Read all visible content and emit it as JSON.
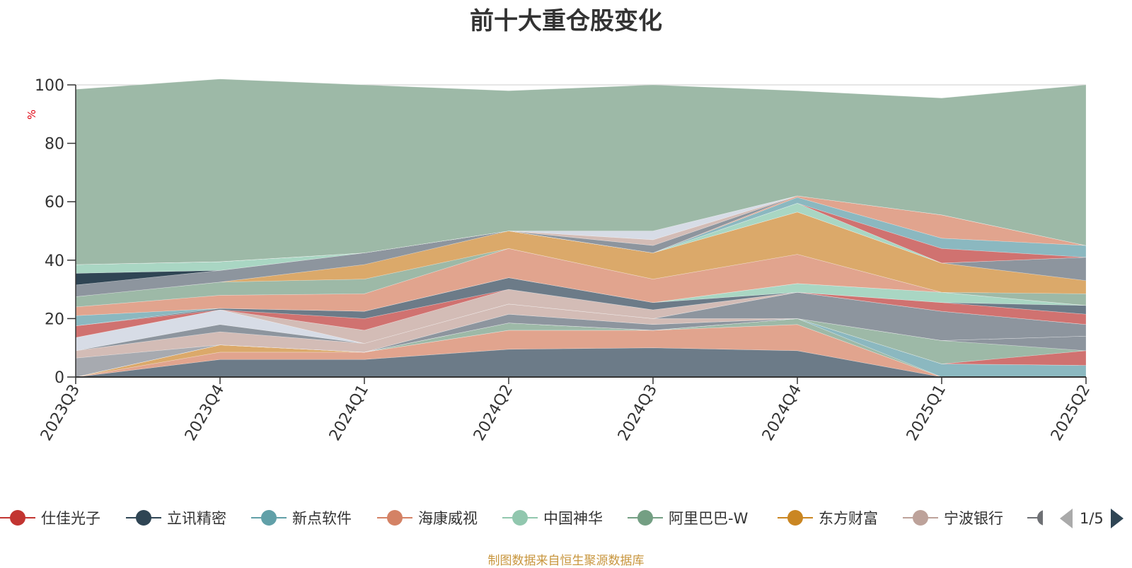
{
  "chart_data": {
    "type": "area",
    "stacked": true,
    "title": "前十大重仓股变化",
    "ylabel": "%",
    "ylim": [
      0,
      100
    ],
    "yticks": [
      0,
      20,
      40,
      60,
      80,
      100
    ],
    "grid": true,
    "legend_position": "bottom",
    "x": [
      "2023Q3",
      "2023Q4",
      "2024Q1",
      "2024Q2",
      "2024Q3",
      "2024Q4",
      "2025Q1",
      "2025Q2"
    ],
    "series": [
      {
        "name": "立讯精密",
        "color": "#6c7b88",
        "values": [
          0,
          6,
          6,
          9.5,
          10,
          9,
          0,
          0
        ]
      },
      {
        "name": "海康威视",
        "color": "#e1a48e",
        "values": [
          0,
          2.5,
          2.5,
          6.5,
          6,
          9,
          0,
          0
        ]
      },
      {
        "name": "东方财富",
        "color": "#dba96a",
        "values": [
          0,
          2.5,
          0,
          0,
          0,
          0,
          0,
          0
        ]
      },
      {
        "name": "",
        "color": "#9db9a7",
        "values": [
          0,
          0,
          0,
          2.5,
          0,
          2,
          0,
          0
        ]
      },
      {
        "name": "新点软件",
        "color": "#8bb8c0",
        "values": [
          0,
          0,
          0,
          0,
          0,
          0,
          4.5,
          4
        ]
      },
      {
        "name": "中国神华",
        "color": "#a9d6c3",
        "values": [
          0,
          0,
          0,
          0,
          0,
          0,
          0,
          0
        ]
      },
      {
        "name": "仕佳光子",
        "color": "#d07270",
        "values": [
          0,
          0,
          0,
          0,
          0,
          0,
          0,
          5
        ]
      },
      {
        "name": "",
        "color": "#9db9a7",
        "values": [
          0,
          0,
          0,
          0,
          0,
          0,
          8,
          0
        ]
      },
      {
        "name": "",
        "color": "#8d959e",
        "values": [
          0,
          0,
          0,
          3,
          2,
          0,
          0,
          5
        ]
      },
      {
        "name": "",
        "color": "#a7aab0",
        "values": [
          6.5,
          0,
          0,
          0,
          0,
          0,
          0,
          0
        ]
      },
      {
        "name": "宁波银行",
        "color": "#d3bcb6",
        "values": [
          2.5,
          4.5,
          3,
          3.5,
          2,
          0,
          0,
          0
        ]
      },
      {
        "name": "",
        "color": "#8d959e",
        "values": [
          0,
          2.5,
          0,
          0,
          0,
          9,
          10,
          4
        ]
      },
      {
        "name": "",
        "color": "#d7dce6",
        "values": [
          4.5,
          5,
          0,
          0,
          0,
          0,
          0,
          0
        ]
      },
      {
        "name": "",
        "color": "#d3bcb6",
        "values": [
          0,
          0,
          4.5,
          5,
          3,
          0,
          0,
          0
        ]
      },
      {
        "name": "仕佳光子",
        "color": "#d07270",
        "values": [
          4,
          0,
          4,
          0,
          0,
          0,
          3,
          3.5
        ]
      },
      {
        "name": "立讯精密",
        "color": "#6c7b88",
        "values": [
          0,
          0.5,
          2.5,
          4,
          2.5,
          0,
          0,
          3
        ]
      },
      {
        "name": "中国神华",
        "color": "#a9d6c3",
        "values": [
          0,
          0,
          0,
          0,
          0,
          3,
          3.5,
          0
        ]
      },
      {
        "name": "新点软件",
        "color": "#8bb8c0",
        "values": [
          3.5,
          0,
          0,
          0,
          0,
          0,
          0,
          0
        ]
      },
      {
        "name": "海康威视",
        "color": "#e1a48e",
        "values": [
          3,
          4.5,
          6,
          10,
          8,
          10,
          0,
          0
        ]
      },
      {
        "name": "",
        "color": "#9db9a7",
        "values": [
          3.5,
          4.5,
          5,
          0,
          0,
          0,
          0,
          4
        ]
      },
      {
        "name": "东方财富",
        "color": "#dba96a",
        "values": [
          0,
          0,
          5,
          6,
          9,
          14.5,
          10,
          4.5
        ]
      },
      {
        "name": "",
        "color": "#8d959e",
        "values": [
          4,
          4,
          4,
          0,
          0,
          0,
          0,
          8
        ]
      },
      {
        "name": "",
        "color": "#2f4554",
        "values": [
          4,
          0,
          0,
          0,
          0,
          0,
          0,
          0
        ]
      },
      {
        "name": "中国神华",
        "color": "#a9d6c3",
        "values": [
          3,
          3,
          0,
          0,
          0,
          3,
          0,
          0
        ]
      },
      {
        "name": "仕佳光子",
        "color": "#d07270",
        "values": [
          0,
          0,
          0,
          0,
          0,
          0,
          5,
          0
        ]
      },
      {
        "name": "新点软件",
        "color": "#8bb8c0",
        "values": [
          0,
          0,
          0,
          0,
          0,
          2,
          3.5,
          4
        ]
      },
      {
        "name": "海康威视",
        "color": "#e1a48e",
        "values": [
          0,
          0,
          0,
          0,
          0,
          0.5,
          8,
          0
        ]
      },
      {
        "name": "",
        "color": "#8d959e",
        "values": [
          0,
          0,
          0,
          0,
          2.5,
          0,
          0,
          0
        ]
      },
      {
        "name": "",
        "color": "#d3bcb6",
        "values": [
          0,
          0,
          0,
          0,
          2,
          0,
          0,
          0
        ]
      },
      {
        "name": "",
        "color": "#d7dce6",
        "values": [
          0,
          0,
          0,
          0,
          3,
          0,
          0,
          0
        ]
      },
      {
        "name": "阿里巴巴-W",
        "color": "#9db9a7",
        "values": [
          60,
          62.5,
          57.5,
          48,
          50,
          36,
          40,
          55
        ]
      }
    ]
  },
  "legend": {
    "items": [
      {
        "label": "仕佳光子",
        "color": "#c23531"
      },
      {
        "label": "立讯精密",
        "color": "#2f4554"
      },
      {
        "label": "新点软件",
        "color": "#61a0a8"
      },
      {
        "label": "海康威视",
        "color": "#d48265"
      },
      {
        "label": "中国神华",
        "color": "#91c7ae"
      },
      {
        "label": "阿里巴巴-W",
        "color": "#749f83"
      },
      {
        "label": "东方财富",
        "color": "#ca8622"
      },
      {
        "label": "宁波银行",
        "color": "#bda29a"
      },
      {
        "label": "",
        "color": "#6e7074"
      }
    ],
    "page_indicator": "1/5"
  },
  "source_note": "制图数据来自恒生聚源数据库",
  "colors": {
    "axis": "#333333",
    "grid": "#cccccc",
    "ylabel": "#e0000f",
    "source": "#c8963e"
  }
}
